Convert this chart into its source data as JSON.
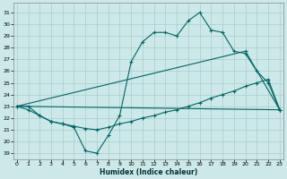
{
  "xlabel": "Humidex (Indice chaleur)",
  "bg_color": "#cce8e8",
  "grid_color": "#aacccc",
  "line_color": "#006666",
  "x_ticks": [
    0,
    1,
    2,
    3,
    4,
    5,
    6,
    7,
    8,
    9,
    10,
    11,
    12,
    13,
    14,
    15,
    16,
    17,
    18,
    19,
    20,
    21,
    22,
    23
  ],
  "y_ticks": [
    19,
    20,
    21,
    22,
    23,
    24,
    25,
    26,
    27,
    28,
    29,
    30,
    31
  ],
  "xlim": [
    -0.3,
    23.3
  ],
  "ylim": [
    18.5,
    31.8
  ],
  "series1_x": [
    0,
    1,
    2,
    3,
    4,
    5,
    6,
    7,
    8,
    9,
    10,
    11,
    12,
    13,
    14,
    15,
    16,
    17,
    18,
    19,
    20,
    21,
    22,
    23
  ],
  "series1_y": [
    23.0,
    23.0,
    22.2,
    21.7,
    21.5,
    21.2,
    19.2,
    19.0,
    20.5,
    22.2,
    26.8,
    28.5,
    29.3,
    29.3,
    29.0,
    30.3,
    31.0,
    29.5,
    29.3,
    27.7,
    27.5,
    26.0,
    25.0,
    22.7
  ],
  "series2_x": [
    0,
    23
  ],
  "series2_y": [
    23.0,
    22.7
  ],
  "series3_x": [
    0,
    20,
    23
  ],
  "series3_y": [
    23.0,
    27.7,
    22.7
  ],
  "series4_x": [
    0,
    1,
    2,
    3,
    4,
    5,
    6,
    7,
    8,
    9,
    10,
    11,
    12,
    13,
    14,
    15,
    16,
    17,
    18,
    19,
    20,
    21,
    22,
    23
  ],
  "series4_y": [
    23.0,
    22.7,
    22.2,
    21.7,
    21.5,
    21.3,
    21.1,
    21.0,
    21.2,
    21.5,
    21.7,
    22.0,
    22.2,
    22.5,
    22.7,
    23.0,
    23.3,
    23.7,
    24.0,
    24.3,
    24.7,
    25.0,
    25.3,
    22.7
  ]
}
